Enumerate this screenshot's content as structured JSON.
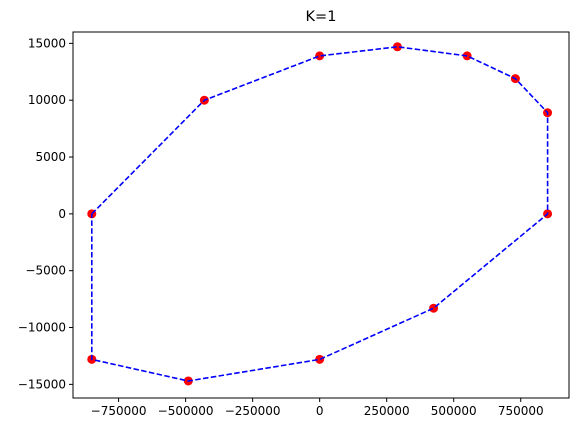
{
  "chart_data": {
    "type": "scatter",
    "title": "K=1",
    "xlabel": "",
    "ylabel": "",
    "xlim": [
      -920000,
      930000
    ],
    "ylim": [
      -16200,
      16000
    ],
    "grid": false,
    "x_ticks": [
      {
        "value": -750000,
        "label": "−750000"
      },
      {
        "value": -500000,
        "label": "−500000"
      },
      {
        "value": -250000,
        "label": "−250000"
      },
      {
        "value": 0,
        "label": "0"
      },
      {
        "value": 250000,
        "label": "250000"
      },
      {
        "value": 500000,
        "label": "500000"
      },
      {
        "value": 750000,
        "label": "750000"
      }
    ],
    "y_ticks": [
      {
        "value": -15000,
        "label": "−15000"
      },
      {
        "value": -10000,
        "label": "−10000"
      },
      {
        "value": -5000,
        "label": "−5000"
      },
      {
        "value": 0,
        "label": "0"
      },
      {
        "value": 5000,
        "label": "5000"
      },
      {
        "value": 10000,
        "label": "10000"
      },
      {
        "value": 15000,
        "label": "15000"
      }
    ],
    "points": [
      {
        "x": -850000,
        "y": 0
      },
      {
        "x": -430000,
        "y": 10000
      },
      {
        "x": 0,
        "y": 13900
      },
      {
        "x": 290000,
        "y": 14700
      },
      {
        "x": 550000,
        "y": 13900
      },
      {
        "x": 730000,
        "y": 11900
      },
      {
        "x": 850000,
        "y": 8900
      },
      {
        "x": 850000,
        "y": 0
      },
      {
        "x": 425000,
        "y": -8300
      },
      {
        "x": 0,
        "y": -12800
      },
      {
        "x": -490000,
        "y": -14700
      },
      {
        "x": -850000,
        "y": -12800
      }
    ],
    "marker_color": "#ff0000",
    "line_color": "#0000ff",
    "line_style": "dashed",
    "closed": true
  }
}
